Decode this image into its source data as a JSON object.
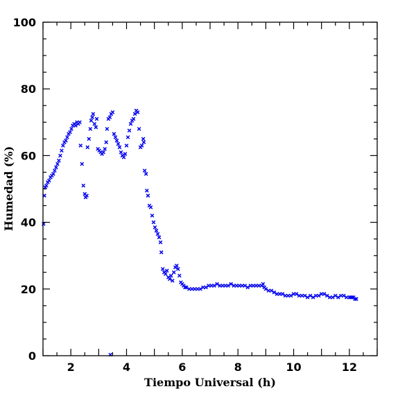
{
  "chart_data": {
    "type": "scatter",
    "xlabel": "Tiempo Universal (h)",
    "ylabel": "Humedad (%)",
    "xlim": [
      1,
      13
    ],
    "ylim": [
      0,
      100
    ],
    "xticks": [
      2,
      4,
      6,
      8,
      10,
      12
    ],
    "yticks": [
      0,
      20,
      40,
      60,
      80,
      100
    ],
    "marker": "x",
    "color": "#0000ee",
    "points": [
      [
        1.02,
        39.5
      ],
      [
        1.05,
        48
      ],
      [
        1.08,
        50.5
      ],
      [
        1.12,
        51
      ],
      [
        1.17,
        52
      ],
      [
        1.22,
        52.5
      ],
      [
        1.27,
        53.5
      ],
      [
        1.32,
        54
      ],
      [
        1.37,
        54.5
      ],
      [
        1.42,
        55.5
      ],
      [
        1.47,
        56.5
      ],
      [
        1.52,
        57.5
      ],
      [
        1.57,
        58.5
      ],
      [
        1.62,
        60
      ],
      [
        1.67,
        61.5
      ],
      [
        1.72,
        63
      ],
      [
        1.77,
        64
      ],
      [
        1.82,
        64.5
      ],
      [
        1.87,
        65.5
      ],
      [
        1.92,
        66.5
      ],
      [
        1.97,
        67
      ],
      [
        2.02,
        68
      ],
      [
        2.07,
        69
      ],
      [
        2.12,
        69.5
      ],
      [
        2.17,
        69
      ],
      [
        2.22,
        70
      ],
      [
        2.27,
        69.5
      ],
      [
        2.32,
        70
      ],
      [
        2.35,
        63
      ],
      [
        2.4,
        57.5
      ],
      [
        2.45,
        51
      ],
      [
        2.5,
        48.5
      ],
      [
        2.53,
        47.5
      ],
      [
        2.57,
        48
      ],
      [
        2.6,
        62.5
      ],
      [
        2.65,
        65
      ],
      [
        2.7,
        68
      ],
      [
        2.73,
        70.5
      ],
      [
        2.77,
        71.5
      ],
      [
        2.8,
        72.5
      ],
      [
        2.85,
        69.5
      ],
      [
        2.9,
        68.5
      ],
      [
        2.93,
        71
      ],
      [
        2.97,
        62
      ],
      [
        3.02,
        61.5
      ],
      [
        3.07,
        61
      ],
      [
        3.12,
        60.5
      ],
      [
        3.17,
        61
      ],
      [
        3.22,
        62
      ],
      [
        3.27,
        64
      ],
      [
        3.3,
        68
      ],
      [
        3.35,
        71
      ],
      [
        3.4,
        71.5
      ],
      [
        3.45,
        72.5
      ],
      [
        3.5,
        73
      ],
      [
        3.55,
        66.5
      ],
      [
        3.6,
        65.5
      ],
      [
        3.65,
        64.5
      ],
      [
        3.7,
        63.5
      ],
      [
        3.75,
        62.5
      ],
      [
        3.8,
        61
      ],
      [
        3.85,
        60
      ],
      [
        3.9,
        59.5
      ],
      [
        3.95,
        60.5
      ],
      [
        4.0,
        63
      ],
      [
        4.05,
        65.5
      ],
      [
        4.1,
        67.5
      ],
      [
        4.15,
        69.5
      ],
      [
        4.2,
        70.5
      ],
      [
        4.25,
        71
      ],
      [
        4.3,
        72.5
      ],
      [
        4.35,
        73.5
      ],
      [
        4.4,
        73
      ],
      [
        4.45,
        68
      ],
      [
        4.5,
        62.5
      ],
      [
        4.55,
        63
      ],
      [
        4.6,
        65
      ],
      [
        4.62,
        64
      ],
      [
        4.65,
        55.5
      ],
      [
        4.7,
        54.5
      ],
      [
        4.73,
        49.5
      ],
      [
        4.77,
        48
      ],
      [
        4.82,
        45
      ],
      [
        4.87,
        44.5
      ],
      [
        4.92,
        42
      ],
      [
        4.97,
        40
      ],
      [
        5.02,
        38.5
      ],
      [
        5.07,
        37.5
      ],
      [
        5.12,
        36.5
      ],
      [
        5.17,
        35.5
      ],
      [
        5.22,
        34
      ],
      [
        5.25,
        31
      ],
      [
        5.3,
        26
      ],
      [
        5.35,
        25
      ],
      [
        5.4,
        24.5
      ],
      [
        5.45,
        25.5
      ],
      [
        5.5,
        23.5
      ],
      [
        5.55,
        23
      ],
      [
        5.6,
        24
      ],
      [
        5.65,
        22.5
      ],
      [
        5.7,
        25
      ],
      [
        5.75,
        26.5
      ],
      [
        5.8,
        27
      ],
      [
        5.85,
        26
      ],
      [
        5.9,
        24
      ],
      [
        5.95,
        22
      ],
      [
        6.0,
        21.5
      ],
      [
        6.05,
        21
      ],
      [
        6.1,
        20.5
      ],
      [
        6.15,
        20.5
      ],
      [
        6.25,
        20
      ],
      [
        6.35,
        20
      ],
      [
        6.45,
        20
      ],
      [
        6.55,
        20
      ],
      [
        6.65,
        20
      ],
      [
        6.75,
        20.5
      ],
      [
        6.85,
        20.5
      ],
      [
        6.95,
        21
      ],
      [
        7.05,
        21
      ],
      [
        7.15,
        21
      ],
      [
        7.25,
        21.5
      ],
      [
        7.35,
        21
      ],
      [
        7.45,
        21
      ],
      [
        7.55,
        21
      ],
      [
        7.65,
        21
      ],
      [
        7.75,
        21.5
      ],
      [
        7.85,
        21
      ],
      [
        7.95,
        21
      ],
      [
        8.05,
        21
      ],
      [
        8.15,
        21
      ],
      [
        8.25,
        21
      ],
      [
        8.35,
        20.5
      ],
      [
        8.45,
        21
      ],
      [
        8.55,
        21
      ],
      [
        8.65,
        21
      ],
      [
        8.75,
        21
      ],
      [
        8.85,
        21
      ],
      [
        8.9,
        21.5
      ],
      [
        8.95,
        20.5
      ],
      [
        9.0,
        20
      ],
      [
        9.1,
        19.5
      ],
      [
        9.2,
        19.5
      ],
      [
        9.3,
        19
      ],
      [
        9.4,
        18.5
      ],
      [
        9.5,
        18.5
      ],
      [
        9.6,
        18.5
      ],
      [
        9.7,
        18
      ],
      [
        9.8,
        18
      ],
      [
        9.9,
        18
      ],
      [
        10.0,
        18.5
      ],
      [
        10.1,
        18.5
      ],
      [
        10.2,
        18
      ],
      [
        10.3,
        18
      ],
      [
        10.4,
        18
      ],
      [
        10.5,
        17.5
      ],
      [
        10.6,
        18
      ],
      [
        10.7,
        17.5
      ],
      [
        10.8,
        18
      ],
      [
        10.9,
        18
      ],
      [
        11.0,
        18.5
      ],
      [
        11.1,
        18.5
      ],
      [
        11.2,
        18
      ],
      [
        11.3,
        17.5
      ],
      [
        11.4,
        17.5
      ],
      [
        11.5,
        18
      ],
      [
        11.6,
        17.5
      ],
      [
        11.7,
        18
      ],
      [
        11.8,
        18
      ],
      [
        11.9,
        17.5
      ],
      [
        12.0,
        17.5
      ],
      [
        12.05,
        17.5
      ],
      [
        12.1,
        17.5
      ],
      [
        12.15,
        17.5
      ],
      [
        12.2,
        17
      ],
      [
        12.25,
        17
      ],
      [
        3.42,
        0.3
      ]
    ]
  }
}
